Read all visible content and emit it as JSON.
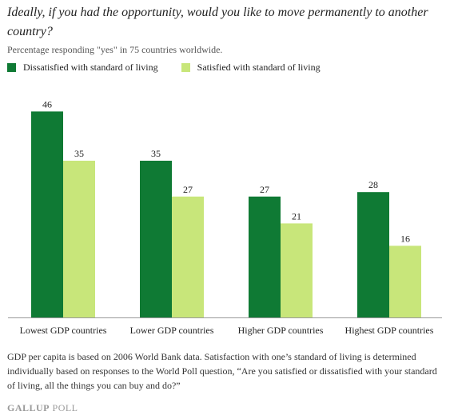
{
  "chart_data": {
    "type": "bar",
    "title": "Ideally, if you had the opportunity, would you like to move permanently to another country?",
    "subtitle": "Percentage responding \"yes\" in 75 countries worldwide.",
    "categories": [
      "Lowest GDP countries",
      "Lower GDP countries",
      "Higher GDP countries",
      "Highest GDP countries"
    ],
    "series": [
      {
        "name": "Dissatisfied with standard of living",
        "color": "#0f7a34",
        "values": [
          46,
          35,
          27,
          28
        ]
      },
      {
        "name": "Satisfied with standard of living",
        "color": "#c8e67a",
        "values": [
          35,
          27,
          21,
          16
        ]
      }
    ],
    "ylim": [
      0,
      50
    ],
    "legend_position": "top-left",
    "grid": false,
    "data_labels": true
  },
  "footnote": "GDP per capita is based on 2006 World Bank data. Satisfaction with one’s standard of living is determined individually based on responses to the World Poll question, “Are you satisfied or dissatisfied with your standard of living, all the things you can buy and do?”",
  "brand": {
    "part1": "GALLUP",
    "part2": " POLL"
  }
}
